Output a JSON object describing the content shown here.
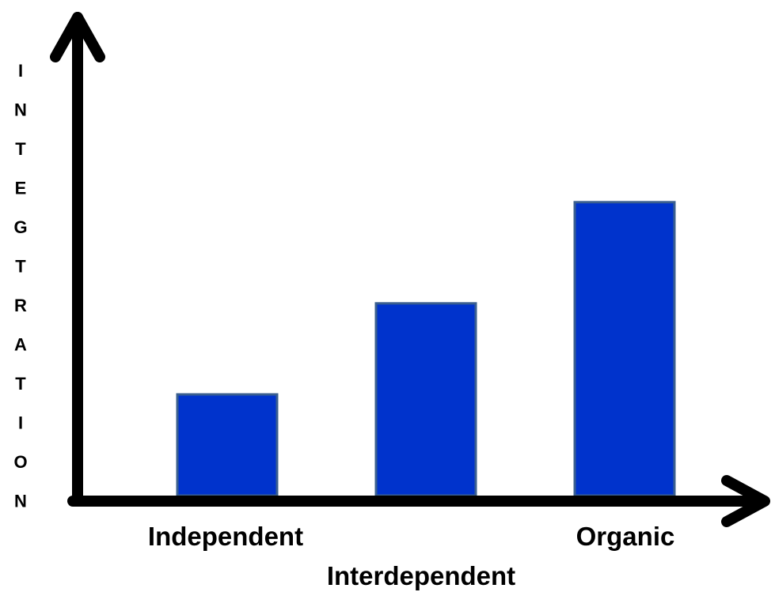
{
  "chart_data": {
    "type": "bar",
    "title": "",
    "xlabel": "",
    "ylabel": "INTEGTRATION",
    "categories": [
      "Independent",
      "Interdependent",
      "Organic"
    ],
    "values": [
      1.0,
      1.9,
      2.9
    ],
    "ylim": [
      0,
      4.0
    ],
    "grid": false,
    "legend": "none",
    "colors": {
      "bar_fill": "#0033cc",
      "bar_stroke": "#3a5f8f",
      "axis": "#000000"
    }
  }
}
